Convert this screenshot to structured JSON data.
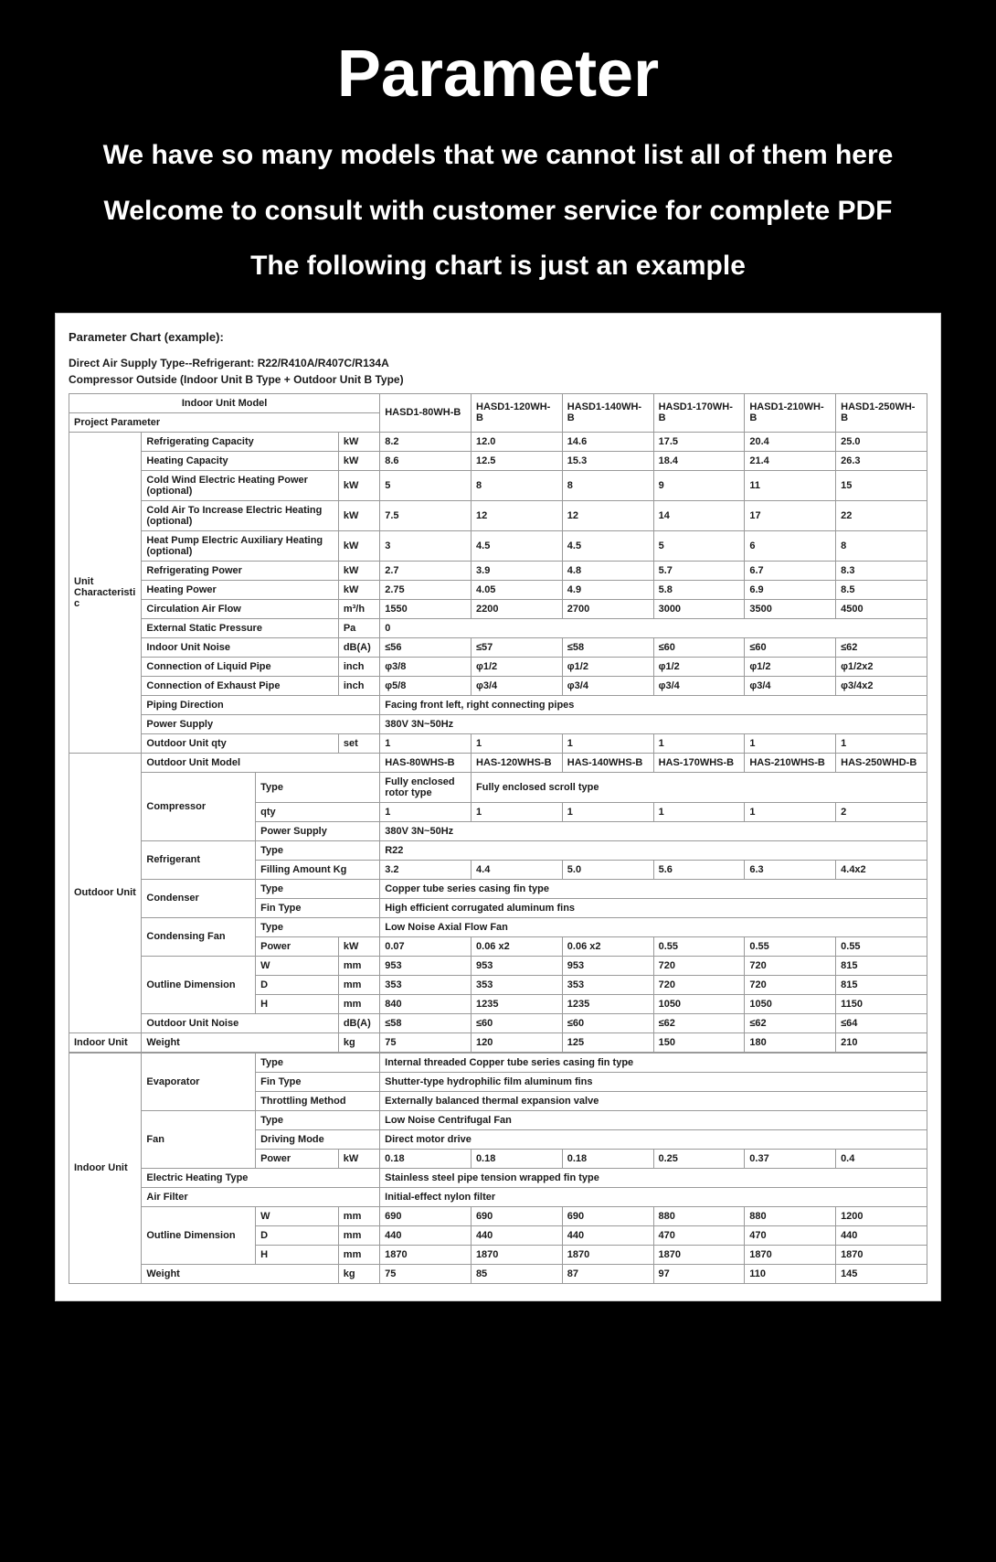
{
  "hero": {
    "title": "Parameter",
    "line1": "We have so many models that we cannot list all of them here",
    "line2": "Welcome to consult with customer service for complete PDF",
    "line3": "The following chart is just an example"
  },
  "chart": {
    "caption": "Parameter Chart (example):",
    "sub1": "Direct Air Supply Type--Refrigerant: R22/R410A/R407C/R134A",
    "sub2": "Compressor Outside (Indoor Unit B Type + Outdoor Unit B Type)"
  },
  "header": {
    "row1": "Indoor Unit Model",
    "row2": "Project   Parameter",
    "models": [
      "HASD1-80WH-B",
      "HASD1-120WH-B",
      "HASD1-140WH-B",
      "HASD1-170WH-B",
      "HASD1-210WH-B",
      "HASD1-250WH-B"
    ]
  },
  "unitChar": {
    "group": "Unit Characteristic",
    "rows": [
      {
        "label": "Refrigerating Capacity",
        "unit": "kW",
        "v": [
          "8.2",
          "12.0",
          "14.6",
          "17.5",
          "20.4",
          "25.0"
        ]
      },
      {
        "label": "Heating Capacity",
        "unit": "kW",
        "v": [
          "8.6",
          "12.5",
          "15.3",
          "18.4",
          "21.4",
          "26.3"
        ]
      },
      {
        "label": "Cold Wind Electric Heating Power (optional)",
        "unit": "kW",
        "v": [
          "5",
          "8",
          "8",
          "9",
          "11",
          "15"
        ]
      },
      {
        "label": "Cold Air To Increase Electric Heating (optional)",
        "unit": "kW",
        "v": [
          "7.5",
          "12",
          "12",
          "14",
          "17",
          "22"
        ]
      },
      {
        "label": "Heat Pump Electric Auxiliary Heating (optional)",
        "unit": "kW",
        "v": [
          "3",
          "4.5",
          "4.5",
          "5",
          "6",
          "8"
        ]
      },
      {
        "label": "Refrigerating Power",
        "unit": "kW",
        "v": [
          "2.7",
          "3.9",
          "4.8",
          "5.7",
          "6.7",
          "8.3"
        ]
      },
      {
        "label": "Heating Power",
        "unit": "kW",
        "v": [
          "2.75",
          "4.05",
          "4.9",
          "5.8",
          "6.9",
          "8.5"
        ]
      },
      {
        "label": "Circulation Air Flow",
        "unit": "m³/h",
        "v": [
          "1550",
          "2200",
          "2700",
          "3000",
          "3500",
          "4500"
        ]
      }
    ],
    "extStatic": {
      "label": "External Static Pressure",
      "unit": "Pa",
      "v": "0"
    },
    "noise": {
      "label": "Indoor Unit Noise",
      "unit": "dB(A)",
      "v": [
        "≤56",
        "≤57",
        "≤58",
        "≤60",
        "≤60",
        "≤62"
      ]
    },
    "liquid": {
      "label": "Connection of Liquid Pipe",
      "unit": "inch",
      "v": [
        "φ3/8",
        "φ1/2",
        "φ1/2",
        "φ1/2",
        "φ1/2",
        "φ1/2x2"
      ]
    },
    "exhaust": {
      "label": "Connection of Exhaust Pipe",
      "unit": "inch",
      "v": [
        "φ5/8",
        "φ3/4",
        "φ3/4",
        "φ3/4",
        "φ3/4",
        "φ3/4x2"
      ]
    },
    "piping": {
      "label": "Piping Direction",
      "v": "Facing front left, right connecting pipes"
    },
    "supply": {
      "label": "Power Supply",
      "v": "380V 3N~50Hz"
    },
    "outqty": {
      "label": "Outdoor Unit qty",
      "unit": "set",
      "v": [
        "1",
        "1",
        "1",
        "1",
        "1",
        "1"
      ]
    }
  },
  "outdoor": {
    "group": "Outdoor Unit",
    "model": {
      "label": "Outdoor Unit Model",
      "v": [
        "HAS-80WHS-B",
        "HAS-120WHS-B",
        "HAS-140WHS-B",
        "HAS-170WHS-B",
        "HAS-210WHS-B",
        "HAS-250WHD-B"
      ]
    },
    "compressor": {
      "label": "Compressor",
      "type": {
        "label": "Type",
        "v1": "Fully enclosed rotor type",
        "v2": "Fully enclosed scroll type"
      },
      "qty": {
        "label": "qty",
        "v": [
          "1",
          "1",
          "1",
          "1",
          "1",
          "2"
        ]
      },
      "supply": {
        "label": "Power Supply",
        "v": "380V 3N~50Hz"
      }
    },
    "refrigerant": {
      "label": "Refrigerant",
      "type": {
        "label": "Type",
        "v": "R22"
      },
      "fill": {
        "label": "Filling Amount Kg",
        "v": [
          "3.2",
          "4.4",
          "5.0",
          "5.6",
          "6.3",
          "4.4x2"
        ]
      }
    },
    "condenser": {
      "label": "Condenser",
      "type": {
        "label": "Type",
        "v": "Copper tube series casing fin type"
      },
      "fin": {
        "label": "Fin Type",
        "v": "High efficient corrugated aluminum fins"
      }
    },
    "condFan": {
      "label": "Condensing Fan",
      "type": {
        "label": "Type",
        "v": "Low Noise Axial Flow Fan"
      },
      "power": {
        "label": "Power",
        "unit": "kW",
        "v": [
          "0.07",
          "0.06 x2",
          "0.06 x2",
          "0.55",
          "0.55",
          "0.55"
        ]
      }
    },
    "dim": {
      "label": "Outline Dimension",
      "w": {
        "label": "W",
        "unit": "mm",
        "v": [
          "953",
          "953",
          "953",
          "720",
          "720",
          "815"
        ]
      },
      "d": {
        "label": "D",
        "unit": "mm",
        "v": [
          "353",
          "353",
          "353",
          "720",
          "720",
          "815"
        ]
      },
      "h": {
        "label": "H",
        "unit": "mm",
        "v": [
          "840",
          "1235",
          "1235",
          "1050",
          "1050",
          "1150"
        ]
      }
    },
    "noise": {
      "label": "Outdoor Unit Noise",
      "unit": "dB(A)",
      "v": [
        "≤58",
        "≤60",
        "≤60",
        "≤62",
        "≤62",
        "≤64"
      ]
    },
    "weight": {
      "label": "Weight",
      "unit": "kg",
      "v": [
        "75",
        "120",
        "125",
        "150",
        "180",
        "210"
      ]
    }
  },
  "indoor": {
    "group": "Indoor Unit",
    "evap": {
      "label": "Evaporator",
      "type": {
        "label": "Type",
        "v": "Internal threaded Copper tube series casing fin type"
      },
      "fin": {
        "label": "Fin Type",
        "v": "Shutter-type hydrophilic film aluminum fins"
      },
      "throt": {
        "label": "Throttling Method",
        "v": "Externally balanced thermal expansion valve"
      }
    },
    "fan": {
      "label": "Fan",
      "type": {
        "label": "Type",
        "v": "Low Noise Centrifugal Fan"
      },
      "drive": {
        "label": "Driving Mode",
        "v": "Direct motor drive"
      },
      "power": {
        "label": "Power",
        "unit": "kW",
        "v": [
          "0.18",
          "0.18",
          "0.18",
          "0.25",
          "0.37",
          "0.4"
        ]
      }
    },
    "heat": {
      "label": "Electric Heating Type",
      "v": "Stainless steel pipe tension wrapped fin type"
    },
    "filter": {
      "label": "Air Filter",
      "v": "Initial-effect nylon filter"
    },
    "dim": {
      "label": "Outline Dimension",
      "w": {
        "label": "W",
        "unit": "mm",
        "v": [
          "690",
          "690",
          "690",
          "880",
          "880",
          "1200"
        ]
      },
      "d": {
        "label": "D",
        "unit": "mm",
        "v": [
          "440",
          "440",
          "440",
          "470",
          "470",
          "440"
        ]
      },
      "h": {
        "label": "H",
        "unit": "mm",
        "v": [
          "1870",
          "1870",
          "1870",
          "1870",
          "1870",
          "1870"
        ]
      }
    },
    "weight": {
      "label": "Weight",
      "unit": "kg",
      "v": [
        "75",
        "85",
        "87",
        "97",
        "110",
        "145"
      ]
    }
  },
  "style": {
    "bg": "#000000",
    "card_bg": "#ffffff",
    "border": "#9a9a9a",
    "title_fontsize": 72,
    "line_fontsize": 30,
    "table_fontsize": 11
  }
}
